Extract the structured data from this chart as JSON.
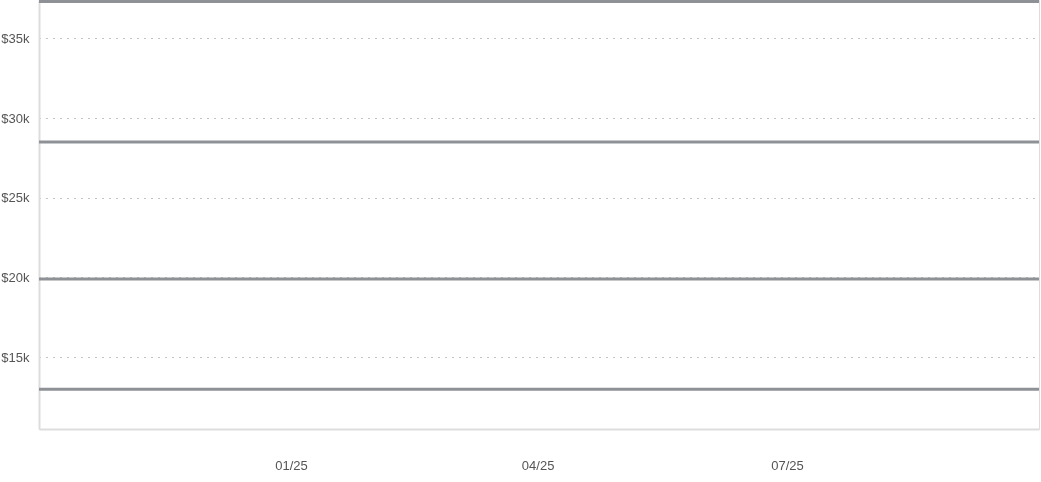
{
  "chart_data": {
    "type": "line",
    "xlim": [
      "2024-10-01",
      "2025-10-01"
    ],
    "xticks": [
      {
        "value": "2025-01-01",
        "label": "01/25"
      },
      {
        "value": "2025-04-01",
        "label": "04/25"
      },
      {
        "value": "2025-07-01",
        "label": "07/25"
      }
    ],
    "ylim": [
      10500,
      37400
    ],
    "yticks": [
      {
        "value": 15000,
        "label": "$15k"
      },
      {
        "value": 20000,
        "label": "$20k"
      },
      {
        "value": 25000,
        "label": "$25k"
      },
      {
        "value": 30000,
        "label": "$30k"
      },
      {
        "value": 35000,
        "label": "$35k"
      }
    ],
    "grid": "y",
    "ref_lines": [
      {
        "axis": "y",
        "value": 37300,
        "color": "#8e9196"
      },
      {
        "axis": "y",
        "value": 28500,
        "color": "#8e9196"
      },
      {
        "axis": "y",
        "value": 19900,
        "color": "#8e9196"
      },
      {
        "axis": "y",
        "value": 13000,
        "color": "#8e9196"
      }
    ]
  }
}
